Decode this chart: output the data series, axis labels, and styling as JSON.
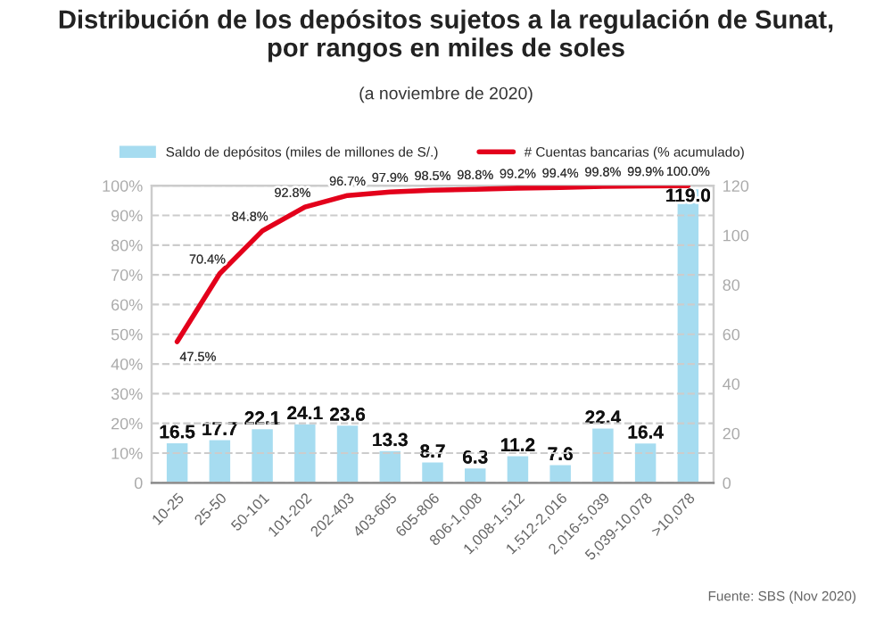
{
  "chart_data": {
    "type": "bar",
    "title": "Distribución de los depósitos sujetos a la regulación de Sunat,\npor rangos en miles de soles",
    "subtitle": "(a noviembre de 2020)",
    "categories": [
      "10-25",
      "25-50",
      "50-101",
      "101-202",
      "202-403",
      "403-605",
      "605-806",
      "806-1,008",
      "1,008-1,512",
      "1,512-2,016",
      "2,016-5,039",
      "5,039-10,078",
      ">10,078"
    ],
    "series": [
      {
        "name": "Saldo de depósitos (miles de millones de S/.)",
        "axis": "y2",
        "color": "#a6dcf0",
        "values": [
          16.5,
          17.7,
          22.1,
          24.1,
          23.6,
          13.3,
          8.7,
          6.3,
          11.2,
          7.6,
          22.4,
          16.4,
          119.0
        ],
        "value_labels": [
          "16.5",
          "17.7",
          "22.1",
          "24.1",
          "23.6",
          "13.3",
          "8.7",
          "6.3",
          "11.2",
          "7.6",
          "22.4",
          "16.4",
          "119.0"
        ]
      },
      {
        "name": "# Cuentas bancarias (% acumulado)",
        "type": "line",
        "color": "#e3001b",
        "values": [
          47.5,
          70.4,
          84.8,
          92.8,
          96.7,
          97.9,
          98.5,
          98.8,
          99.2,
          99.4,
          99.8,
          99.9,
          100.0
        ],
        "value_labels": [
          "47.5%",
          "70.4%",
          "84.8%",
          "92.8%",
          "96.7%",
          "97.9%",
          "98.5%",
          "98.8%",
          "99.2%",
          "99.4%",
          "99.8%",
          "99.9%",
          "100.0%"
        ]
      }
    ],
    "ylim": [
      0,
      100
    ],
    "yticks": [
      0,
      {
        "value": 10,
        "label": "10%"
      },
      {
        "value": 20,
        "label": "20%"
      },
      {
        "value": 30,
        "label": "30%"
      },
      {
        "value": 40,
        "label": "40%"
      },
      {
        "value": 50,
        "label": "50%"
      },
      {
        "value": 60,
        "label": "60%"
      },
      {
        "value": 70,
        "label": "70%"
      },
      {
        "value": 80,
        "label": "80%"
      },
      {
        "value": 90,
        "label": "90%"
      },
      {
        "value": 100,
        "label": "100%"
      }
    ],
    "y2lim": [
      0,
      120
    ],
    "y2ticks": [
      0,
      20,
      40,
      60,
      80,
      100,
      120
    ],
    "grid": "y",
    "legend": "top",
    "annotations": [
      "Fuente: SBS (Nov 2020)"
    ]
  }
}
